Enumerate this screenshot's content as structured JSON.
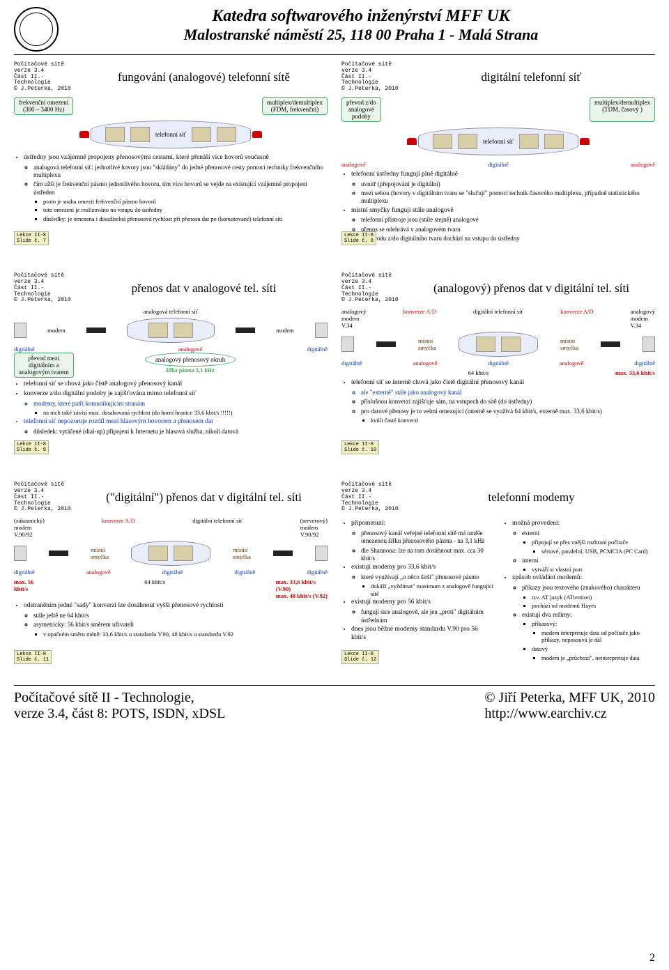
{
  "header": {
    "line1": "Katedra softwarového inženýrství MFF UK",
    "line2": "Malostranské náměstí 25, 118 00 Praha 1 - Malá Strana"
  },
  "meta": {
    "l1": "Počítačové sítě",
    "l2": "verze 3.4",
    "l3": "Část II.-Technologie",
    "l4": "© J.Peterka, 2010"
  },
  "slides": {
    "s7": {
      "title": "fungování (analogové) telefonní sítě",
      "box1": "frekvenční omezení\n(300 – 3400 Hz)",
      "box2": "multiplex/demultiplex\n(FDM, frekvenční)",
      "cloud": "telefonní síť",
      "b1": "ústředny jsou vzájemně propojeny přenosovými cestami, které přenáší více hovorů současně",
      "b1a": "analogová telefonní síť: jednotlivé hovory jsou \"skládány\" do jedné přenosové cesty pomocí techniky frekvenčního multiplexu",
      "b1b": "čím užší je frekvenční pásmo jednotlivého hovoru, tím více hovorů se vejde na existující vzájemné propojení ústředen",
      "b1b1": "proto je snaha omezit frekvenční pásmo hovorů",
      "b1b2": "toto omezení je realizováno na vstupu do ústředny",
      "b1b3": "důsledky: je omezena i dosažitelná přenosová rychlost při přenosu dat po (komutované) telefonní síti",
      "foot": "Lekce II-8\nSlide č. 7"
    },
    "s8": {
      "title": "digitální telefonní síť",
      "box1": "převod z/do\nanalogové\npodoby",
      "box2": "multiplex/demultiplex\n(TDM, časový )",
      "cloud": "telefonní síť",
      "lab_a": "analogově",
      "lab_d": "digitálně",
      "b1": "telefonní ústředny fungují plně digitálně",
      "b1a": "uvnitř (přepojování je digitální)",
      "b1b": "mezi sebou (hovory v digitálním tvaru se \"slučují\" pomocí technik časového multiplexu, případně statistického multiplexu",
      "b2": "místní smyčky fungují stále analogově",
      "b2a": "telefonní přístroje jsou (stále stejně) analogové",
      "b2b": "přenos se odehrává v analogovém tvaru",
      "b2c": "k převodu z/do digitálního tvaru dochází na vstupu do ústředny",
      "foot": "Lekce II-8\nSlide č. 8"
    },
    "s9": {
      "title": "přenos dat v analogové tel. síti",
      "lab_modem": "modem",
      "lab_anet": "analogová telefonní síť",
      "lab_dig": "digitálně",
      "lab_ana": "analogově",
      "box1": "převod mezi\ndigitálním a\nanalogovým tvarem",
      "oval": "analogový přenosový okruh",
      "band": "šířka pásma 3,1 kHz",
      "b1": "telefonní síť se chová jako čistě analogový přenosový kanál",
      "b2": "konverze z/do digitální podoby je zajišťována mimo telefonní síť",
      "b2a": "modemy, které patří komunikujícím stranám",
      "b2a1": "na nich také závisí max. dosahovaná rychlost (do horní hranice 33,6 kbit/s !!!!!)",
      "b3": "telefonní síť nepozoruje rozdíl mezi hlasovým hovorem a přenosem dat",
      "b3a": "důsledek: vytáčené (dial-up) připojení k Internetu je hlasová služba, nikoli datová",
      "foot": "Lekce II-8\nSlide č. 9"
    },
    "s10": {
      "title": "(analogový) přenos dat v digitální tel. síti",
      "lab_amodem": "analogový\nmodem\nV.34",
      "lab_conv": "konverze A/D",
      "lab_dnet": "digitální telefonní síť",
      "lab_loop": "místní\nsmyčka",
      "lab_dig": "digitálně",
      "lab_ana": "analogově",
      "lab_64": "64 kbit/s",
      "lab_max": "max. 33,6 kbit/s",
      "b1": "telefonní síť se interně chová jako čistě digitální přenosový kanál",
      "b1a": "ale \"externě\" stále jako analogový kanál",
      "b1b": "příslušnou konverzi zajišťuje sám, na vstupech do sítě (do ústředny)",
      "b1c": "pro datové přenosy je to velmi omezující (interně se využívá 64 kbit/s, externě max. 33,6 kbit/s)",
      "b1c1": "kvůli časté konverzi",
      "foot": "Lekce II-8\nSlide č. 10"
    },
    "s11": {
      "title": "(\"digitální\") přenos dat v digitální tel. síti",
      "lab_cmodem": "(zákaznický)\nmodem\nV.90/92",
      "lab_smodem": "(serverový)\nmodem\nV.90/92",
      "lab_conv": "konverze A/D",
      "lab_dnet": "digitální telefonní síť",
      "lab_loop": "místní\nsmyčka",
      "lab_dig": "digitálně",
      "lab_ana": "analogově",
      "lab_64": "64 kbit/s",
      "lab_56": "max. 56\nkbit/s",
      "lab_336": "max. 33,6 kbit/s\n(V.90)",
      "lab_48": "max. 48 kbit/s (V.92)",
      "b1": "odstraněním jedné \"sady\" konverzí lze dosáhnout vyšší přenosové rychlosti",
      "b1a": "stále ještě ne 64 kbit/s",
      "b1b": "asymetricky: 56 kbit/s směrem uživateli",
      "b1b1": "v opačném směru méně: 33,6 kbit/s u standardu V.90, 48 kbit/s u standardu V.92",
      "foot": "Lekce II-8\nSlide č. 11"
    },
    "s12": {
      "title": "telefonní modemy",
      "left": {
        "b1": "připomenutí:",
        "b1a": "přenosový kanál veřejné telefonní sítě má uměle omezenou šířku přenosového pásma - na 3,1 kHz",
        "b1b": "dle Shannona: lze na tom dosáhnout max. cca 30 kbit/s",
        "b2": "existují modemy pro 33,6 kbit/s",
        "b2a": "které využívají „o něco širší\" přenosové pásmo",
        "b2a1": "dokáží „vyždímat\" maximum z analogově fungující sítě",
        "b3": "existují modemy pro 56 kbit/s",
        "b3a": "fungují sice analogově, ale jen „proti\" digitálním ústřednám",
        "b4": "dnes jsou běžné modemy standardu V.90 pro 56 kbit/s"
      },
      "right": {
        "b1": "možná provedení:",
        "b1a": "externí",
        "b1a1": "připojují se přes vnější rozhraní počítače",
        "b1a1a": "sériové, paralelní, USB, PCMCIA (PC Card)",
        "b1b": "interní",
        "b1b1": "vytváří si vlastní port",
        "b2": "způsob ovládání modemů:",
        "b2a": "příkazy jsou textového (znakového) charakteru",
        "b2a1": "tzv. AT jazyk (ATtention)",
        "b2a2": "pochází od modemů Hayes",
        "b2b": "existují dva režimy:",
        "b2b1": "příkazový:",
        "b2b1a": "modem interpretuje data od počítače jako příkazy, neposouvá je dál",
        "b2b2": "datový",
        "b2b2a": "modem je „průchozí\", neinterpretuje data"
      },
      "foot": "Lekce II-8\nSlide č. 12"
    }
  },
  "footer": {
    "l1": "Počítačové sítě II - Technologie,",
    "l2": "verze 3.4, část 8: POTS, ISDN, xDSL",
    "r1": "© Jiří Peterka, MFF UK, 2010",
    "r2": "http://www.earchiv.cz",
    "page": "2"
  }
}
